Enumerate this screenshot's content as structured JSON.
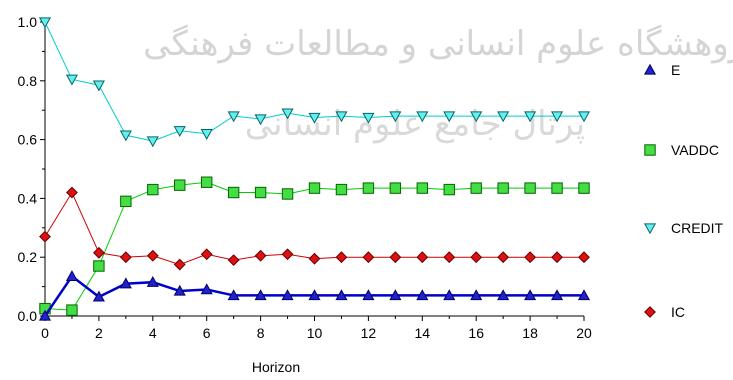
{
  "chart_data": {
    "type": "line",
    "title": "",
    "xlabel": "Horizon",
    "ylabel": "",
    "xlim": [
      0,
      20
    ],
    "ylim": [
      0,
      1.0
    ],
    "x_ticks": [
      "0",
      "2",
      "4",
      "6",
      "8",
      "10",
      "12",
      "14",
      "16",
      "18",
      "20"
    ],
    "y_ticks": [
      "0.0",
      "0.2",
      "0.4",
      "0.6",
      "0.8",
      "1.0"
    ],
    "x": [
      0,
      1,
      2,
      3,
      4,
      5,
      6,
      7,
      8,
      9,
      10,
      11,
      12,
      13,
      14,
      15,
      16,
      17,
      18,
      19,
      20
    ],
    "legend_position": "right",
    "grid": false,
    "series": [
      {
        "name": "E",
        "color": "#0000cc",
        "marker": "triangle-up",
        "marker_color": "#2222cc",
        "values": [
          0.0,
          0.135,
          0.065,
          0.11,
          0.115,
          0.085,
          0.09,
          0.07,
          0.07,
          0.07,
          0.07,
          0.07,
          0.07,
          0.07,
          0.07,
          0.07,
          0.07,
          0.07,
          0.07,
          0.07,
          0.07
        ]
      },
      {
        "name": "VADDC",
        "color": "#00cc00",
        "marker": "square",
        "marker_color": "#44dd44",
        "values": [
          0.025,
          0.02,
          0.17,
          0.39,
          0.43,
          0.445,
          0.455,
          0.42,
          0.42,
          0.415,
          0.435,
          0.43,
          0.435,
          0.435,
          0.435,
          0.43,
          0.435,
          0.435,
          0.435,
          0.435,
          0.435
        ]
      },
      {
        "name": "CREDIT",
        "color": "#00cccc",
        "marker": "triangle-down",
        "marker_color": "#66eeee",
        "values": [
          1.0,
          0.805,
          0.785,
          0.615,
          0.595,
          0.63,
          0.62,
          0.68,
          0.67,
          0.69,
          0.675,
          0.68,
          0.675,
          0.68,
          0.68,
          0.68,
          0.68,
          0.68,
          0.68,
          0.68,
          0.68
        ]
      },
      {
        "name": "IC",
        "color": "#cc0000",
        "marker": "diamond",
        "marker_color": "#dd1111",
        "values": [
          0.27,
          0.42,
          0.215,
          0.2,
          0.205,
          0.175,
          0.21,
          0.19,
          0.205,
          0.21,
          0.195,
          0.2,
          0.2,
          0.2,
          0.2,
          0.2,
          0.2,
          0.2,
          0.2,
          0.2,
          0.2
        ]
      }
    ],
    "watermark": {
      "line1": "پژوهشگاه علوم انسانی و مطالعات فرهنگی",
      "line2": "پرتال جامع علوم انسانی"
    }
  }
}
